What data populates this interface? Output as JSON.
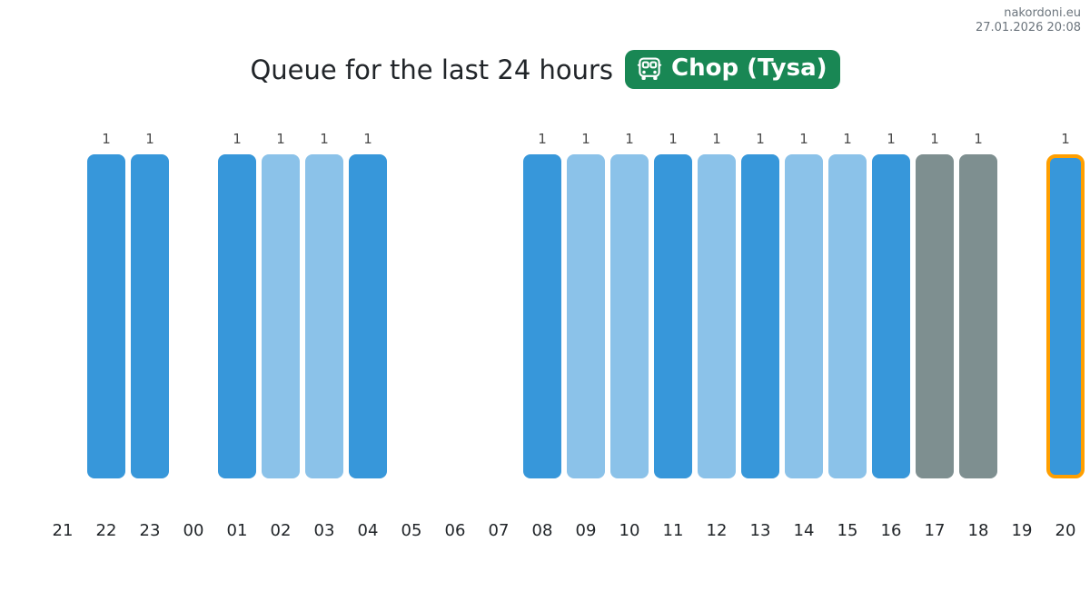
{
  "watermark": {
    "site": "nakordoni.eu",
    "timestamp": "27.01.2026 20:08"
  },
  "header": {
    "title": "Queue for the last 24 hours",
    "badge_label": "Chop (Tysa)",
    "badge_icon": "bus-front-icon"
  },
  "colors": {
    "badge_background": "#198754",
    "badge_text": "#ffffff",
    "primary_bar": "#3797da",
    "light_bar": "#8bc2e9",
    "gray_bar": "#7e8f90",
    "highlight_border": "#ff9f00",
    "title_text": "#212529",
    "axis_label_text": "#212529",
    "value_label_text": "#4a4a4a",
    "watermark_text": "#6c757d",
    "page_background": "#ffffff"
  },
  "chart_data": {
    "type": "bar",
    "title": "Queue for the last 24 hours",
    "xlabel": "",
    "ylabel": "",
    "ylim": [
      0,
      1
    ],
    "grid": false,
    "legend": false,
    "value_labels_shown": true,
    "categories": [
      "21",
      "22",
      "23",
      "00",
      "01",
      "02",
      "03",
      "04",
      "05",
      "06",
      "07",
      "08",
      "09",
      "10",
      "11",
      "12",
      "13",
      "14",
      "15",
      "16",
      "17",
      "18",
      "19",
      "20"
    ],
    "values": [
      null,
      1,
      1,
      null,
      1,
      1,
      1,
      1,
      null,
      null,
      null,
      1,
      1,
      1,
      1,
      1,
      1,
      1,
      1,
      1,
      1,
      1,
      null,
      1
    ],
    "bar_styles": [
      null,
      "primary",
      "primary",
      null,
      "primary",
      "light",
      "light",
      "primary",
      null,
      null,
      null,
      "primary",
      "light",
      "light",
      "primary",
      "light",
      "primary",
      "light",
      "light",
      "primary",
      "gray",
      "gray",
      null,
      "primary-highlighted"
    ],
    "highlighted_category": "20"
  }
}
